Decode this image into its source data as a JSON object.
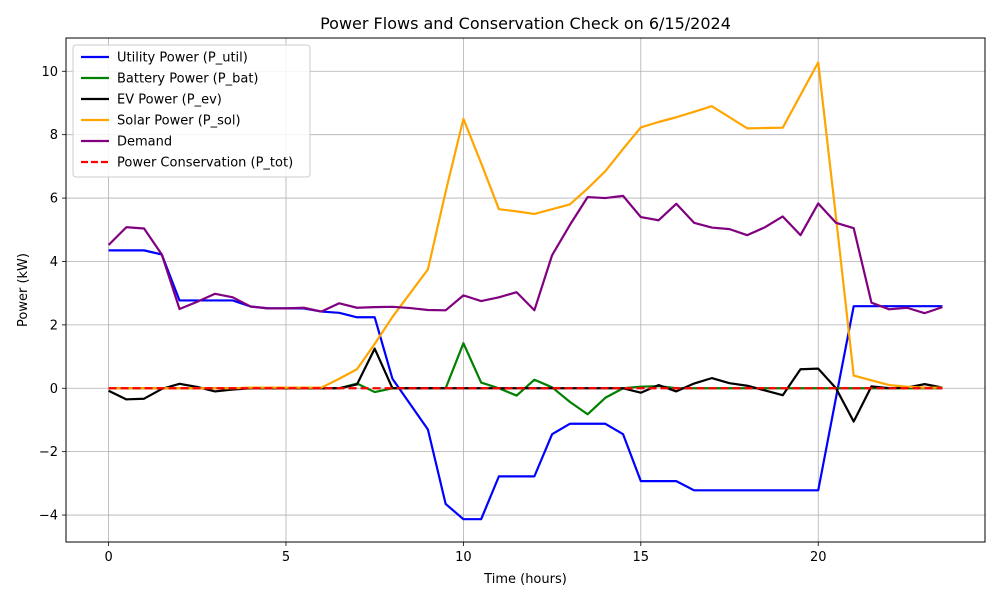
{
  "chart_data": {
    "type": "line",
    "title": "Power Flows and Conservation Check on 6/15/2024",
    "xlabel": "Time (hours)",
    "ylabel": "Power (kW)",
    "xlim": [
      -1.2,
      24.7
    ],
    "ylim": [
      -4.85,
      11.05
    ],
    "xticks": [
      0,
      5,
      10,
      15,
      20
    ],
    "yticks": [
      -4,
      -2,
      0,
      2,
      4,
      6,
      8,
      10
    ],
    "grid": true,
    "legend_position": "upper-left",
    "x": [
      0,
      0.5,
      1,
      1.5,
      2,
      2.5,
      3,
      3.5,
      4,
      4.5,
      5,
      5.5,
      6,
      6.5,
      7,
      7.5,
      8,
      8.5,
      9,
      9.5,
      10,
      10.5,
      11,
      11.5,
      12,
      12.5,
      13,
      13.5,
      14,
      14.5,
      15,
      15.5,
      16,
      16.5,
      17,
      17.5,
      18,
      18.5,
      19,
      19.5,
      20,
      20.5,
      21,
      21.5,
      22,
      22.5,
      23,
      23.5
    ],
    "series": [
      {
        "name": "Utility Power (P_util)",
        "color": "#0000ff",
        "dashed": false,
        "values": [
          4.35,
          4.35,
          4.35,
          4.22,
          2.77,
          2.77,
          2.77,
          2.77,
          2.58,
          2.52,
          2.52,
          2.52,
          2.42,
          2.38,
          2.24,
          2.24,
          0.3,
          -0.5,
          -1.3,
          -3.65,
          -4.13,
          -4.13,
          -2.78,
          -2.78,
          -2.78,
          -1.45,
          -1.12,
          -1.12,
          -1.12,
          -1.45,
          -2.93,
          -2.93,
          -2.93,
          -3.22,
          -3.22,
          -3.22,
          -3.22,
          -3.22,
          -3.22,
          -3.22,
          -3.22,
          -0.3,
          2.59,
          2.59,
          2.59,
          2.59,
          2.59,
          2.59
        ]
      },
      {
        "name": "Battery Power (P_bat)",
        "color": "#008000",
        "dashed": false,
        "values": [
          0.0,
          0.0,
          0.0,
          0.0,
          0.0,
          0.0,
          0.0,
          0.0,
          0.0,
          0.0,
          0.0,
          0.0,
          0.0,
          0.0,
          0.15,
          -0.12,
          0.0,
          0.0,
          0.0,
          0.0,
          1.42,
          0.18,
          0.0,
          -0.23,
          0.27,
          0.03,
          -0.43,
          -0.82,
          -0.3,
          0.0,
          0.05,
          0.07,
          0.0,
          0.0,
          0.0,
          0.0,
          0.0,
          0.0,
          0.0,
          0.0,
          0.0,
          0.0,
          0.0,
          0.0,
          0.0,
          0.0,
          0.0,
          0.0
        ]
      },
      {
        "name": "EV Power (P_ev)",
        "color": "#000000",
        "dashed": false,
        "values": [
          -0.08,
          -0.35,
          -0.33,
          -0.02,
          0.14,
          0.04,
          -0.1,
          -0.04,
          0.0,
          0.0,
          0.0,
          0.0,
          0.0,
          0.0,
          0.12,
          1.25,
          0.0,
          0.0,
          0.0,
          0.0,
          0.0,
          0.0,
          0.0,
          0.0,
          0.0,
          0.0,
          0.0,
          0.0,
          0.0,
          0.0,
          -0.14,
          0.1,
          -0.1,
          0.15,
          0.32,
          0.16,
          0.08,
          -0.07,
          -0.22,
          0.6,
          0.62,
          0.0,
          -1.05,
          0.06,
          0.0,
          0.02,
          0.13,
          0.02
        ]
      },
      {
        "name": "Solar Power (P_sol)",
        "color": "#ffa500",
        "dashed": false,
        "values": [
          0.0,
          0.0,
          0.0,
          0.0,
          0.0,
          0.0,
          0.0,
          0.0,
          0.02,
          0.02,
          0.02,
          0.02,
          0.02,
          0.3,
          0.6,
          1.4,
          2.25,
          3.0,
          3.75,
          6.2,
          8.5,
          7.1,
          5.65,
          5.58,
          5.5,
          5.65,
          5.8,
          6.3,
          6.85,
          7.55,
          8.23,
          8.4,
          8.55,
          8.72,
          8.9,
          8.55,
          8.2,
          8.21,
          8.22,
          9.25,
          10.28,
          5.4,
          0.4,
          0.25,
          0.1,
          0.05,
          0.02,
          0.02
        ]
      },
      {
        "name": "Demand",
        "color": "#800080",
        "dashed": false,
        "values": [
          4.52,
          5.08,
          5.04,
          4.22,
          2.5,
          2.73,
          2.98,
          2.87,
          2.58,
          2.52,
          2.52,
          2.54,
          2.42,
          2.68,
          2.54,
          2.56,
          2.57,
          2.53,
          2.47,
          2.46,
          2.93,
          2.75,
          2.87,
          3.03,
          2.46,
          4.2,
          5.15,
          6.03,
          6.0,
          6.07,
          5.4,
          5.3,
          5.82,
          5.22,
          5.07,
          5.02,
          4.83,
          5.08,
          5.42,
          4.83,
          5.83,
          5.22,
          5.05,
          2.7,
          2.49,
          2.54,
          2.37,
          2.56
        ]
      },
      {
        "name": "Power Conservation (P_tot)",
        "color": "#ff0000",
        "dashed": true,
        "values": [
          0,
          0,
          0,
          0,
          0,
          0,
          0,
          0,
          0,
          0,
          0,
          0,
          0,
          0,
          0,
          0,
          0,
          0,
          0,
          0,
          0,
          0,
          0,
          0,
          0,
          0,
          0,
          0,
          0,
          0,
          0,
          0,
          0,
          0,
          0,
          0,
          0,
          0,
          0,
          0,
          0,
          0,
          0,
          0,
          0,
          0,
          0,
          0
        ]
      }
    ]
  }
}
